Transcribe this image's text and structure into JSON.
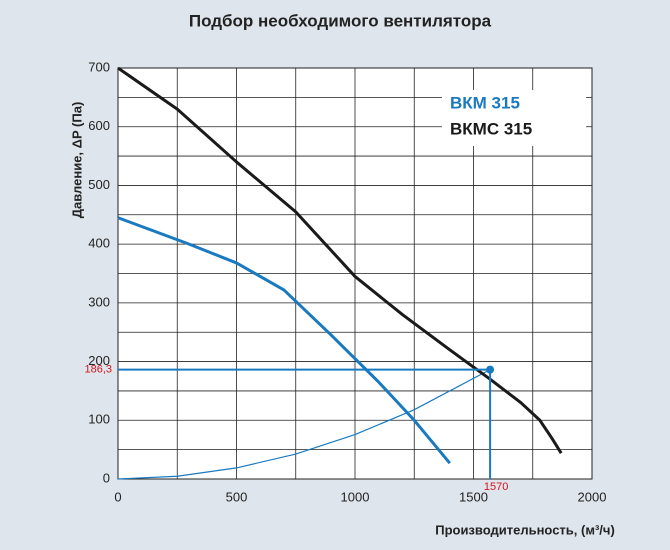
{
  "chart_data": {
    "type": "line",
    "title": "Подбор необходимого вентилятора",
    "y_label": "Давление, ΔP (Па)",
    "x_label": "Производительность, (м³/ч)",
    "xlim": [
      0,
      2000
    ],
    "xticks": [
      0,
      500,
      1000,
      1500,
      2000
    ],
    "ylim": [
      0,
      700
    ],
    "yticks": [
      0,
      100,
      200,
      300,
      400,
      500,
      600,
      700
    ],
    "xgrid": [
      0,
      250,
      500,
      750,
      1000,
      1250,
      1500,
      1750,
      2000
    ],
    "ygrid": [
      0,
      50,
      100,
      150,
      200,
      250,
      300,
      350,
      400,
      450,
      500,
      550,
      600,
      650,
      700
    ],
    "grid": true,
    "legend": "upper right",
    "series": [
      {
        "name": "ВКМ 315",
        "color": "#1a7abf",
        "x": [
          0,
          300,
          500,
          700,
          900,
          1100,
          1250,
          1400
        ],
        "values": [
          445,
          400,
          368,
          322,
          245,
          165,
          100,
          27
        ]
      },
      {
        "name": "ВКМС 315",
        "color": "#1a1a1a",
        "x": [
          0,
          250,
          500,
          750,
          1000,
          1200,
          1400,
          1570,
          1700,
          1780,
          1830,
          1870
        ],
        "values": [
          700,
          630,
          540,
          455,
          345,
          280,
          220,
          170,
          130,
          100,
          70,
          44
        ]
      }
    ],
    "system_curve": {
      "color": "#1a7abf",
      "x": [
        0,
        250,
        500,
        750,
        1000,
        1250,
        1570
      ],
      "values": [
        0,
        4.7,
        18.9,
        42.5,
        75.6,
        118.1,
        186.3
      ]
    },
    "operating_point": {
      "x": 1570,
      "y": 186.3,
      "x_label": "1570",
      "y_label": "186,3",
      "color": "#d4141c"
    }
  }
}
